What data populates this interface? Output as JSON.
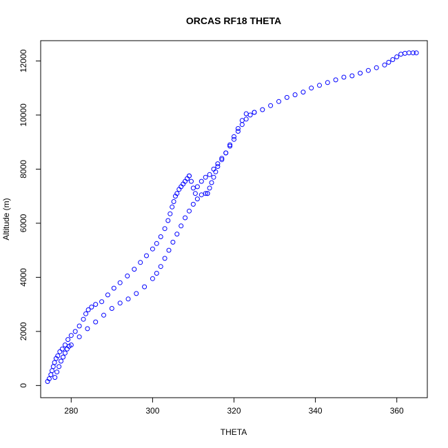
{
  "chart_data": {
    "type": "scatter",
    "title": "ORCAS RF18 THETA",
    "xlabel": "THETA",
    "ylabel": "Altitude (m)",
    "xlim": [
      272.5,
      367.5
    ],
    "ylim": [
      -450,
      12750
    ],
    "xticks": [
      280,
      300,
      320,
      340,
      360
    ],
    "yticks": [
      0,
      2000,
      4000,
      6000,
      8000,
      10000,
      12000
    ],
    "grid": false,
    "legend": "none",
    "marker": "open-circle",
    "color": "#0000ff",
    "series": [
      {
        "x": [
          274.2,
          274.6,
          275.0,
          275.3,
          275.6,
          275.9,
          276.3,
          276.7,
          277.2,
          277.8,
          278.5,
          279.2,
          280.0,
          281.0,
          282.0,
          283.0,
          283.6,
          284.2,
          285.0,
          286.0,
          287.5,
          289.0,
          290.5,
          292.0,
          293.8,
          295.5,
          297.0,
          298.5,
          300.0,
          301.0,
          302.0,
          303.0,
          303.8,
          304.3,
          304.8,
          305.2,
          305.6,
          306.0,
          306.5,
          307.0,
          307.5,
          308.0,
          308.5,
          309.0
        ],
        "y": [
          150,
          250,
          400,
          550,
          700,
          850,
          1000,
          1100,
          1250,
          1350,
          1500,
          1700,
          1850,
          2000,
          2200,
          2450,
          2650,
          2800,
          2900,
          3000,
          3100,
          3350,
          3600,
          3800,
          4050,
          4300,
          4550,
          4800,
          5050,
          5250,
          5500,
          5800,
          6100,
          6350,
          6600,
          6800,
          7000,
          7100,
          7250,
          7350,
          7450,
          7550,
          7650,
          7750
        ]
      },
      {
        "x": [
          309.0,
          309.5,
          310.0,
          310.5,
          311.0,
          312.0,
          313.0,
          314.0,
          315.0,
          316.0,
          317.0,
          318.0,
          319.0,
          320.0,
          321.0,
          322.0,
          323.0,
          324.0,
          325.0
        ],
        "y": [
          7750,
          7550,
          7300,
          7100,
          7350,
          7550,
          7700,
          7800,
          8000,
          8200,
          8400,
          8600,
          8850,
          9100,
          9400,
          9650,
          9850,
          10000,
          10100
        ]
      },
      {
        "x": [
          276.0,
          276.5,
          277.0,
          277.5,
          278.0,
          278.5,
          279.0,
          279.5,
          280.0,
          282.0,
          284.0,
          286.0,
          288.0,
          290.0,
          292.0,
          294.0,
          296.0,
          298.0,
          300.0,
          301.0,
          302.0,
          303.0,
          304.0,
          305.0,
          306.0,
          307.0,
          308.0,
          309.0,
          310.0,
          311.0,
          312.0,
          313.0,
          313.5
        ],
        "y": [
          300,
          500,
          700,
          900,
          1050,
          1200,
          1350,
          1450,
          1500,
          1800,
          2100,
          2350,
          2600,
          2850,
          3050,
          3200,
          3400,
          3650,
          3950,
          4150,
          4400,
          4700,
          5000,
          5300,
          5600,
          5900,
          6200,
          6450,
          6700,
          6900,
          7050,
          7100,
          7100
        ]
      },
      {
        "x": [
          313.5,
          314.0,
          314.5,
          315.0,
          315.5,
          316.0,
          317.0,
          318.0,
          319.0,
          320.0,
          321.0,
          322.0,
          323.0
        ],
        "y": [
          7100,
          7300,
          7500,
          7700,
          7900,
          8100,
          8350,
          8600,
          8900,
          9200,
          9500,
          9800,
          10050
        ]
      },
      {
        "x": [
          325.0,
          327.0,
          329.0,
          331.0,
          333.0,
          335.0,
          337.0,
          339.0,
          341.0,
          343.0,
          345.0,
          347.0,
          349.0,
          351.0,
          353.0,
          355.0,
          357.0,
          358.0,
          359.0,
          360.0,
          361.0,
          362.0,
          363.0,
          364.0,
          364.8
        ],
        "y": [
          10100,
          10200,
          10350,
          10500,
          10650,
          10750,
          10850,
          11000,
          11100,
          11200,
          11300,
          11400,
          11450,
          11550,
          11650,
          11750,
          11850,
          11950,
          12050,
          12150,
          12250,
          12280,
          12300,
          12300,
          12300
        ]
      }
    ]
  }
}
